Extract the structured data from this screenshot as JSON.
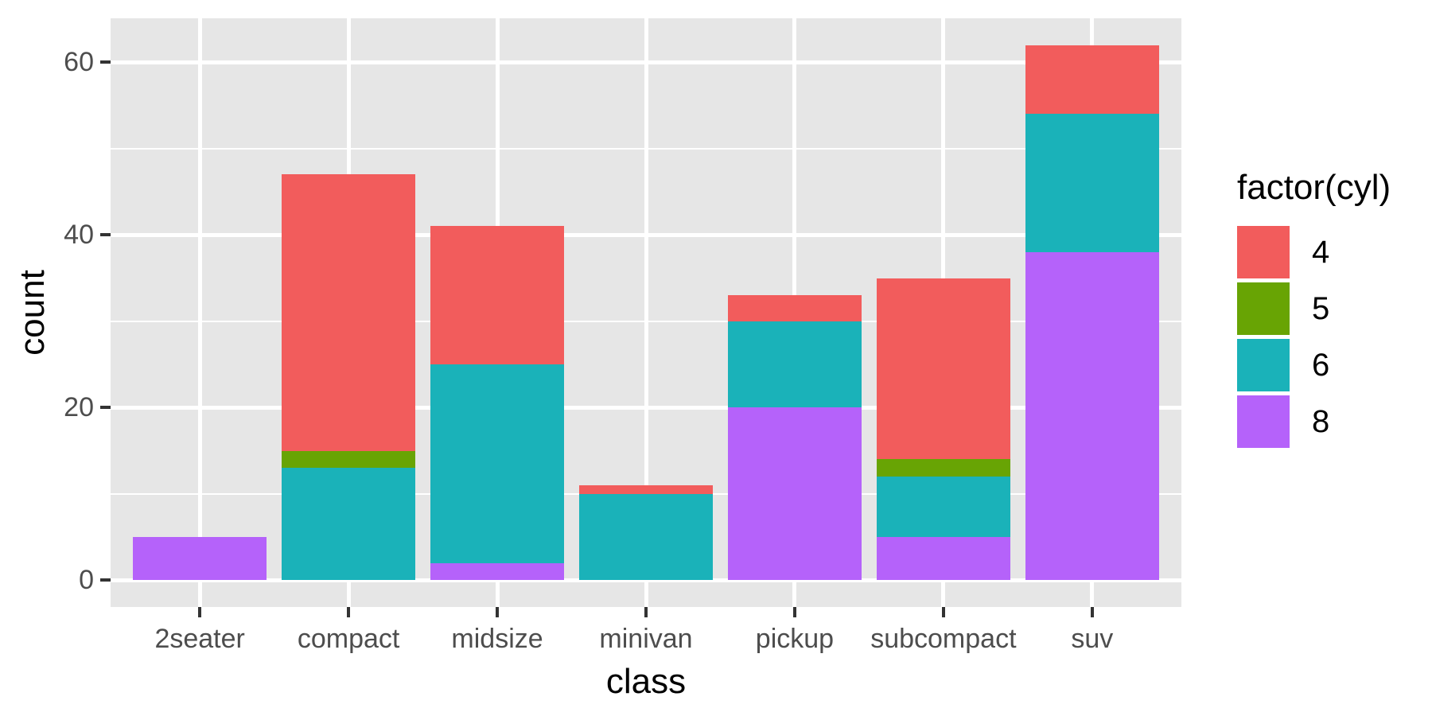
{
  "chart_data": {
    "type": "bar",
    "stacked": true,
    "xlabel": "class",
    "ylabel": "count",
    "categories": [
      "2seater",
      "compact",
      "midsize",
      "minivan",
      "pickup",
      "subcompact",
      "suv"
    ],
    "series": [
      {
        "name": "4",
        "color": "#F25C5C",
        "values": [
          0,
          32,
          16,
          1,
          3,
          21,
          8
        ]
      },
      {
        "name": "5",
        "color": "#68A404",
        "values": [
          0,
          2,
          0,
          0,
          0,
          2,
          0
        ]
      },
      {
        "name": "6",
        "color": "#1AB2B9",
        "values": [
          0,
          13,
          23,
          10,
          10,
          7,
          16
        ]
      },
      {
        "name": "8",
        "color": "#B562FA",
        "values": [
          5,
          0,
          2,
          0,
          20,
          5,
          38
        ]
      }
    ],
    "stack_order_bottom_to_top": [
      "8",
      "6",
      "5",
      "4"
    ],
    "totals": [
      5,
      47,
      41,
      11,
      33,
      35,
      62
    ],
    "y_ticks": [
      0,
      20,
      40,
      60
    ],
    "y_minor_ticks": [
      10,
      30,
      50
    ],
    "ylim": [
      0,
      62
    ],
    "bar_width_fraction": 0.9,
    "legend": {
      "title": "factor(cyl)",
      "entries": [
        "4",
        "5",
        "6",
        "8"
      ],
      "position": "right"
    },
    "style": {
      "panel_bg": "#E6E6E6",
      "grid_color": "#FFFFFF",
      "tick_color": "#333333",
      "tick_label_color": "#4D4D4D",
      "title_color": "#000000"
    }
  }
}
